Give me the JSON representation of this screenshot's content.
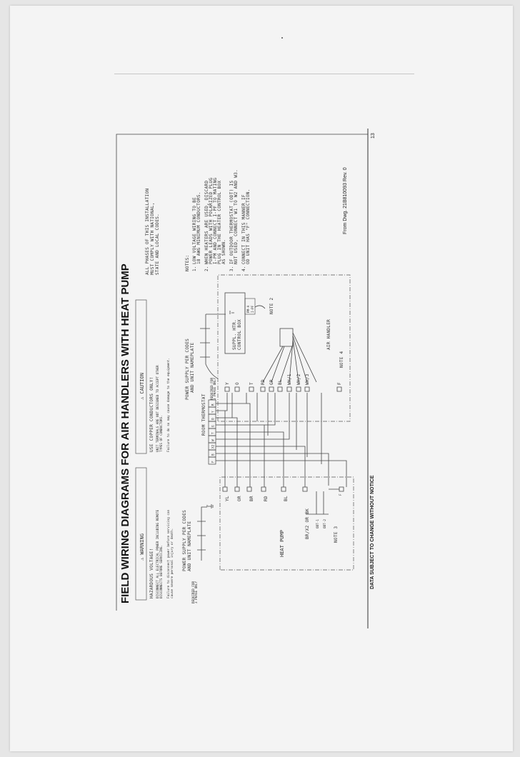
{
  "title": "FIELD WIRING DIAGRAMS FOR  AIR HANDLERS WITH HEAT PUMP",
  "warning": {
    "label": "⚠ WARNING",
    "lines": [
      "HAZARDOUS VOLTAGE!",
      "DISCONNECT ALL ELECTRICAL POWER INCLUDING REMOTE",
      "DISCONNECTS BEFORE SERVICING.",
      "Failure to disconnect power before servicing can",
      "cause severe personal injury or death."
    ]
  },
  "caution": {
    "label": "⚠ CAUTION",
    "lines": [
      "USE COPPER CONDUCTORS ONLY!",
      "UNIT TERMINALS ARE NOT DESIGNED TO ACCEPT OTHER",
      "TYPES OF CONDUCTORS.",
      "Failure to do so may cause damage to the equipment."
    ]
  },
  "compliance": [
    "ALL PHASES OF THIS INSTALLATION",
    "MUST COMPLY WITH NATIONAL,",
    "STATE AND LOCAL CODES."
  ],
  "notes": {
    "heading": "NOTES:",
    "items": [
      [
        "1.",
        "LOW VOLTAGE WIRING TO BE",
        "18 AWG MINIMUM CONDUCTORS."
      ],
      [
        "2.",
        "WHEN HEATERS ARE USED, DISCARD",
        "POWER LEADS WITH POLARIZED PLUG",
        "I-PM AND CONNECT I-PF TO MATING",
        "PLUG IN THE HEATER CONTROL BOX",
        "AS SHOWN."
      ],
      [
        "3.",
        "IF OUTDOOR THERMOSTAT (ODT) IS",
        "NOT USED, CONNECT W1 TO W2 AND W3."
      ],
      [
        "4.",
        "CONNECT IN THIS MANNER IF",
        "OD UNIT HAS \"F\" CONNECTION."
      ]
    ]
  },
  "diagram": {
    "heat_pump": {
      "power_supply": [
        "POWER SUPPLY PER CODES",
        "AND UNIT NAMEPLATE"
      ],
      "required_3phase": [
        "REQUIRED FOR",
        "3 PHASE ONLY"
      ],
      "terminals": [
        "YL",
        "OR",
        "BR",
        "RD",
        "BL",
        "BR/X2 OR BK"
      ],
      "odt": [
        "ODT-1",
        "ODT-2"
      ],
      "f_label": "F",
      "label": "HEAT PUMP",
      "note": "NOTE 3"
    },
    "thermostat": {
      "label": "ROOM THERMOSTAT",
      "terminals": [
        "F",
        "B",
        "X2",
        "W",
        "T",
        "G",
        "O",
        "Y",
        "R"
      ]
    },
    "air_handler": {
      "power_supply": [
        "POWER SUPPLY PER CODES",
        "AND UNIT NAMEPLATE"
      ],
      "required_3phase": [
        "REQUIRED FOR",
        "3 PHASE ONLY"
      ],
      "terminals": [
        "Y",
        "O",
        "T",
        "RD",
        "GR",
        "BL",
        "WH/1",
        "WH/2",
        "WH/3",
        "F"
      ],
      "control_box": [
        "SUPPL. HTR.",
        "CONTROL BOX"
      ],
      "plug": [
        "PM-A",
        "I-PF"
      ],
      "note2": "NOTE 2",
      "note4": "NOTE 4",
      "label": "AIR HANDLER"
    }
  },
  "drawing_ref": "From Dwg. 21B810093 Rev. 0",
  "footer": "DATA SUBJECT TO CHANGE WITHOUT NOTICE",
  "page_number": "13"
}
